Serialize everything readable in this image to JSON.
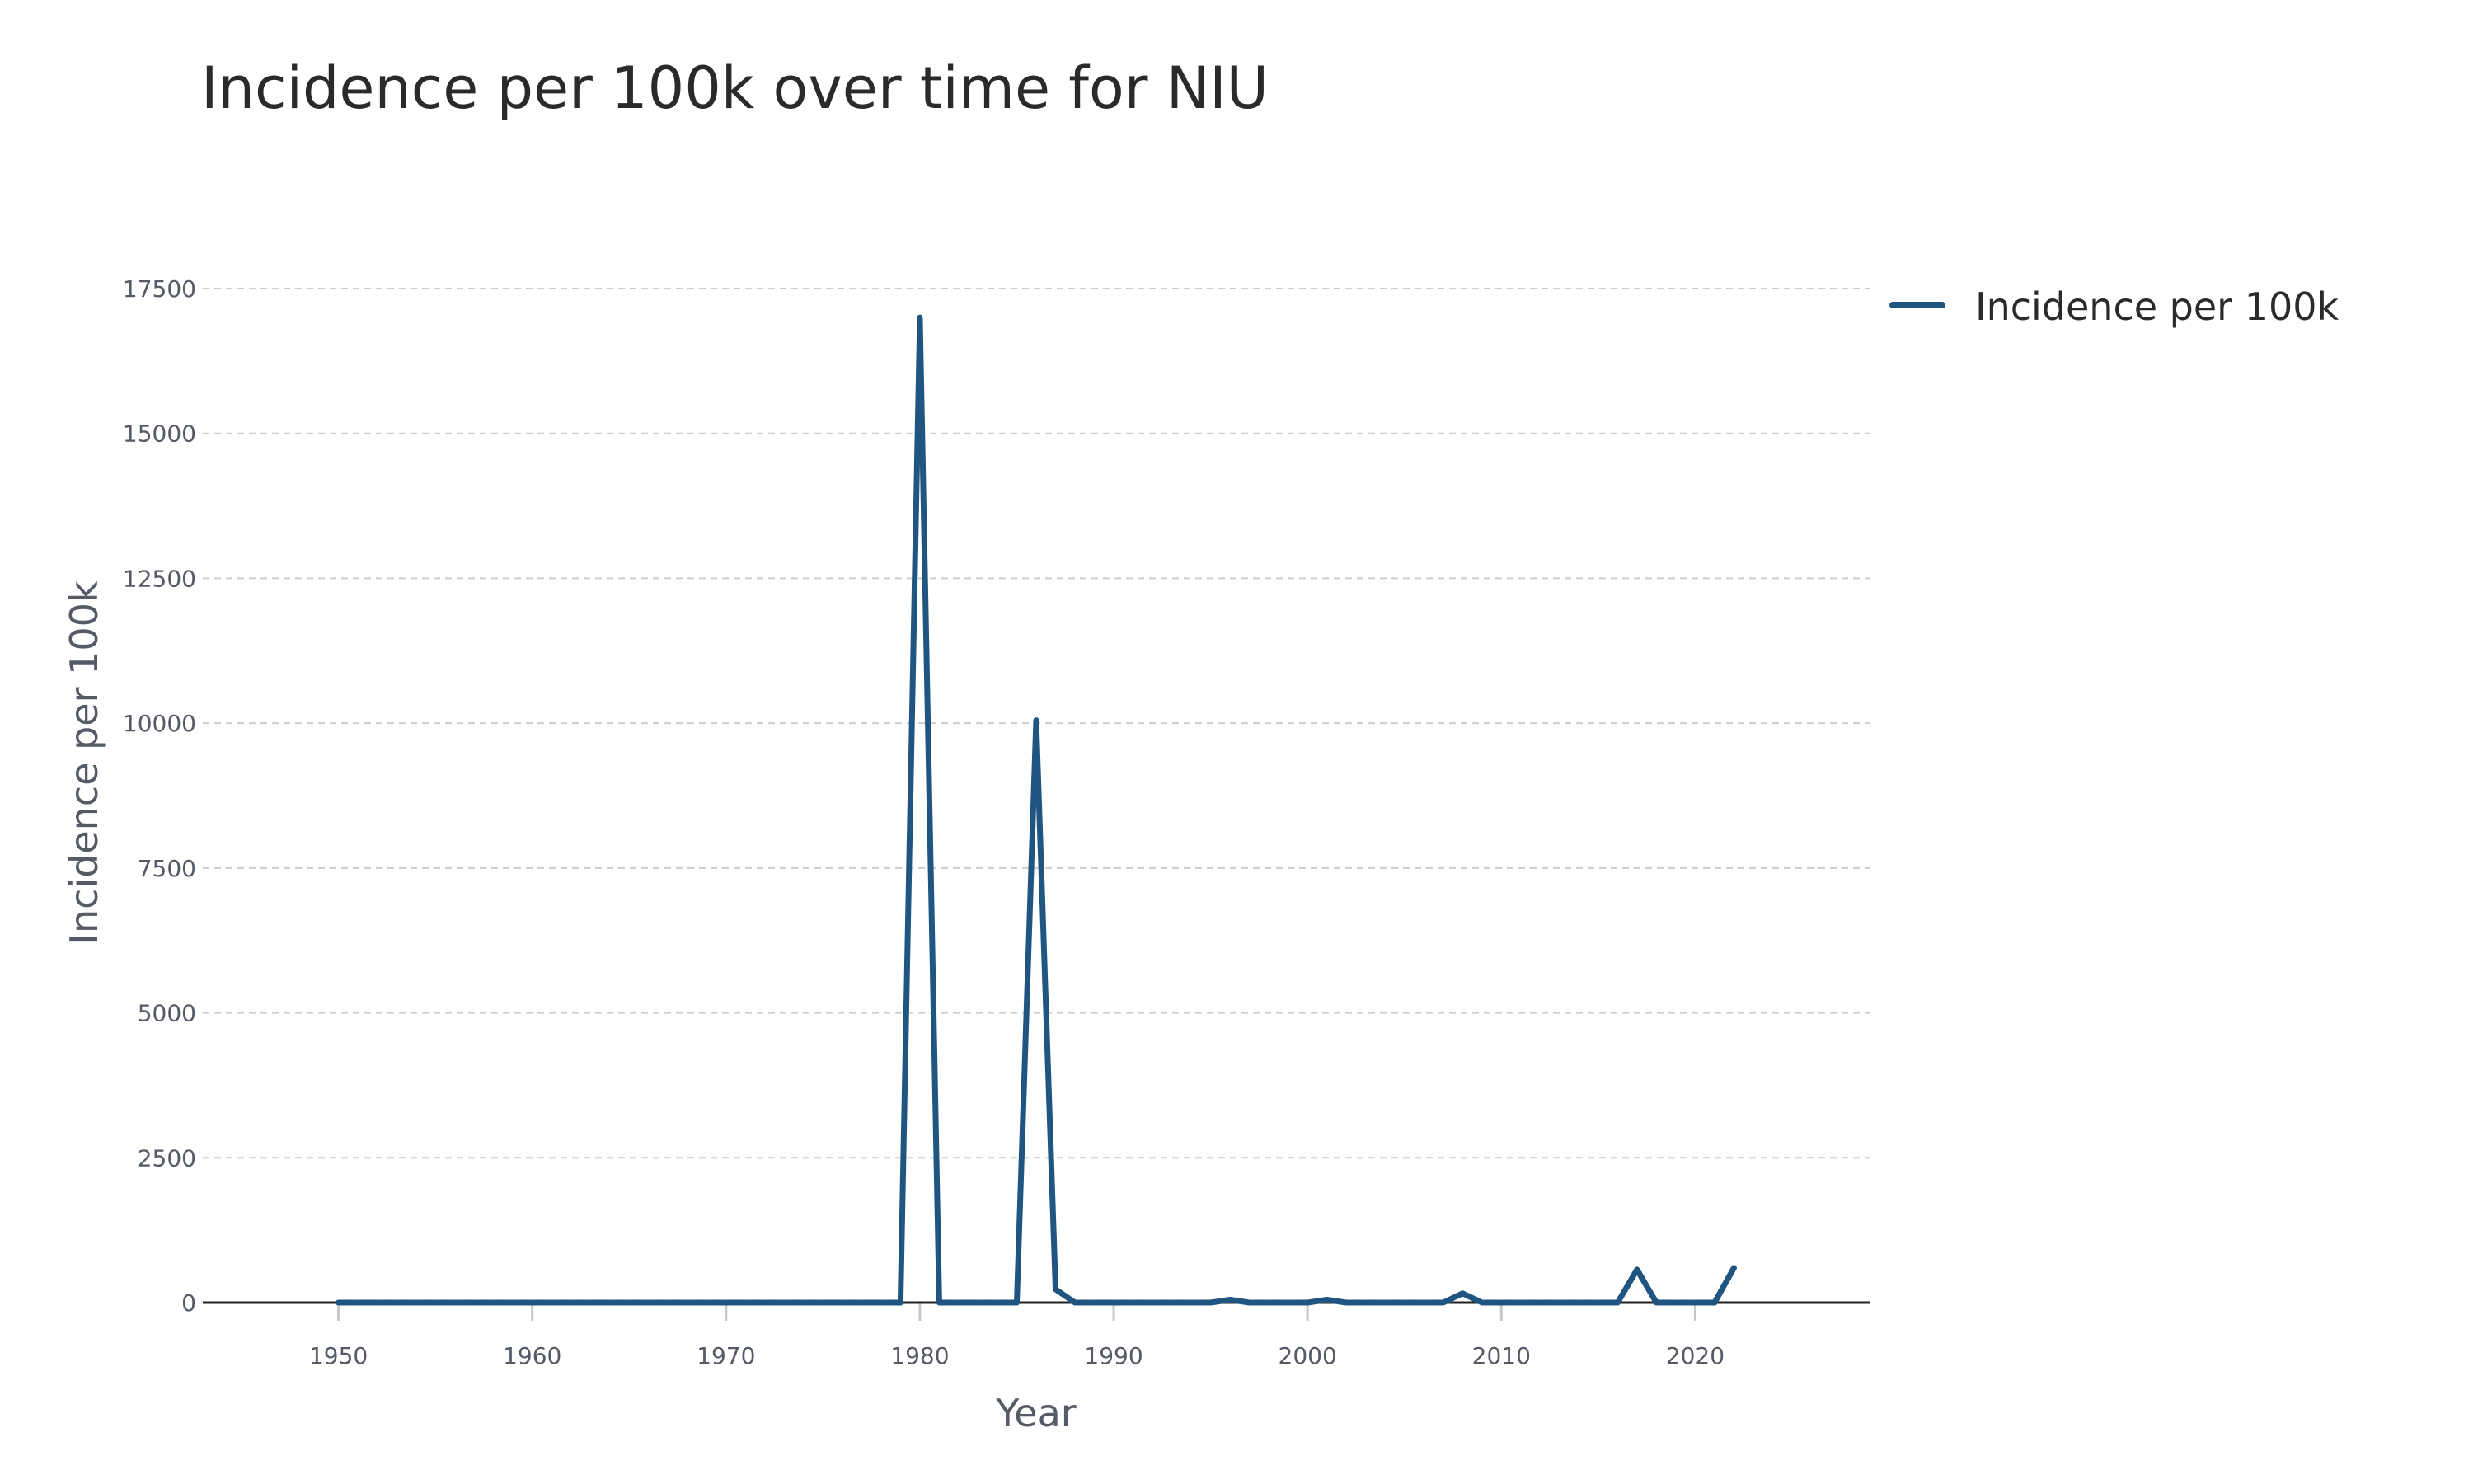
{
  "chart_data": {
    "type": "line",
    "title": "Incidence per 100k over time for NIU",
    "xlabel": "Year",
    "ylabel": "Incidence per 100k",
    "xlim": [
      1943,
      2029
    ],
    "ylim": [
      0,
      17500
    ],
    "x_ticks": [
      "1950",
      "1960",
      "1970",
      "1980",
      "1990",
      "2000",
      "2010",
      "2020"
    ],
    "y_ticks": [
      "0",
      "2500",
      "5000",
      "7500",
      "10000",
      "12500",
      "15000",
      "17500"
    ],
    "grid": "horizontal dashed",
    "legend_position": "top-right",
    "colors": {
      "line": "#1f5580",
      "grid": "#cccccc",
      "axis": "#222222"
    },
    "series": [
      {
        "name": "Incidence per 100k",
        "x": [
          1950,
          1951,
          1952,
          1953,
          1954,
          1955,
          1956,
          1957,
          1958,
          1959,
          1960,
          1961,
          1962,
          1963,
          1964,
          1965,
          1966,
          1967,
          1968,
          1969,
          1970,
          1971,
          1972,
          1973,
          1974,
          1975,
          1976,
          1977,
          1978,
          1979,
          1980,
          1981,
          1982,
          1983,
          1984,
          1985,
          1986,
          1987,
          1988,
          1989,
          1990,
          1991,
          1992,
          1993,
          1994,
          1995,
          1996,
          1997,
          1998,
          1999,
          2000,
          2001,
          2002,
          2003,
          2004,
          2005,
          2006,
          2007,
          2008,
          2009,
          2010,
          2011,
          2012,
          2013,
          2014,
          2015,
          2016,
          2017,
          2018,
          2019,
          2020,
          2021,
          2022
        ],
        "y": [
          0,
          0,
          0,
          0,
          0,
          0,
          0,
          0,
          0,
          0,
          0,
          0,
          0,
          0,
          0,
          0,
          0,
          0,
          0,
          0,
          0,
          0,
          0,
          0,
          0,
          0,
          0,
          0,
          0,
          0,
          17000,
          0,
          0,
          0,
          0,
          0,
          10050,
          230,
          0,
          0,
          0,
          0,
          0,
          0,
          0,
          0,
          50,
          0,
          0,
          0,
          0,
          50,
          0,
          0,
          0,
          0,
          0,
          0,
          160,
          0,
          0,
          0,
          0,
          0,
          0,
          0,
          0,
          570,
          0,
          0,
          0,
          0,
          600
        ]
      }
    ]
  }
}
